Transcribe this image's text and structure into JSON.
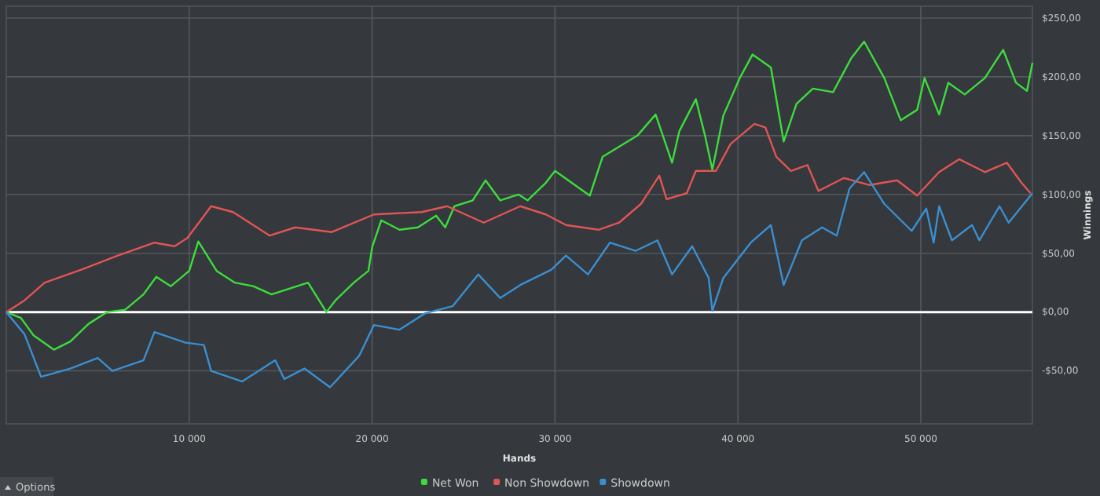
{
  "chart_data": {
    "type": "line",
    "xlabel": "Hands",
    "ylabel": "Winnings",
    "xlim": [
      0,
      56100
    ],
    "xticks": [
      {
        "value": 10000,
        "label": "10 000"
      },
      {
        "value": 20000,
        "label": "20 000"
      },
      {
        "value": 30000,
        "label": "30 000"
      },
      {
        "value": 40000,
        "label": "40 000"
      },
      {
        "value": 50000,
        "label": "50 000"
      }
    ],
    "ylim": [
      -95,
      260
    ],
    "yticks": [
      {
        "value": -50,
        "label": "-$50,00"
      },
      {
        "value": 0,
        "label": "$0,00"
      },
      {
        "value": 50,
        "label": "$50,00"
      },
      {
        "value": 100,
        "label": "$100,00"
      },
      {
        "value": 150,
        "label": "$150,00"
      },
      {
        "value": 200,
        "label": "$200,00"
      },
      {
        "value": 250,
        "label": "$250,00"
      }
    ],
    "grid": true,
    "legend": "bottom",
    "marker": "none",
    "line_style": "solid",
    "ref_lines": [
      {
        "axis": "y",
        "value": 0,
        "color": "#ffffff"
      }
    ],
    "annotations": [
      "Options"
    ],
    "series": [
      {
        "name": "Net Won",
        "color": "#3ddc3d",
        "x": [
          0,
          800,
          1500,
          2600,
          3500,
          4500,
          5500,
          6500,
          7500,
          8200,
          9000,
          10000,
          10500,
          11500,
          12500,
          13500,
          14500,
          15500,
          16500,
          17500,
          18000,
          19000,
          19800,
          20000,
          20500,
          21500,
          22500,
          23500,
          24000,
          24500,
          25500,
          26200,
          27000,
          28000,
          28500,
          29500,
          30000,
          31900,
          32600,
          34500,
          35500,
          36400,
          36800,
          37700,
          38200,
          38600,
          39200,
          40100,
          40800,
          41800,
          42500,
          43200,
          44100,
          45200,
          46200,
          46900,
          48000,
          48900,
          49800,
          50200,
          51000,
          51500,
          52400,
          53500,
          54500,
          55200,
          55800,
          56100
        ],
        "values": [
          0,
          -5,
          -20,
          -32,
          -25,
          -10,
          0,
          2,
          15,
          30,
          22,
          35,
          60,
          35,
          25,
          22,
          15,
          20,
          25,
          0,
          10,
          25,
          35,
          55,
          78,
          70,
          72,
          82,
          72,
          90,
          95,
          112,
          95,
          100,
          95,
          110,
          120,
          99,
          132,
          150,
          168,
          127,
          154,
          181,
          150,
          121,
          167,
          199,
          219,
          208,
          145,
          177,
          190,
          187,
          216,
          230,
          199,
          163,
          172,
          199,
          168,
          195,
          185,
          199,
          223,
          195,
          188,
          212
        ]
      },
      {
        "name": "Non Showdown",
        "color": "#e05555",
        "x": [
          0,
          1000,
          2100,
          4100,
          6100,
          8100,
          9200,
          9900,
          11200,
          12400,
          14400,
          15800,
          17800,
          20100,
          22700,
          24100,
          26100,
          28100,
          29500,
          30600,
          32400,
          33500,
          34700,
          35700,
          36100,
          37200,
          37700,
          38800,
          39600,
          40900,
          41500,
          42100,
          42900,
          43800,
          44400,
          45800,
          47200,
          48700,
          49800,
          51000,
          52100,
          53500,
          54700,
          55500,
          56000
        ],
        "values": [
          0,
          10,
          25,
          36,
          48,
          59,
          56,
          63,
          90,
          85,
          65,
          72,
          68,
          83,
          85,
          90,
          76,
          90,
          83,
          74,
          70,
          76,
          92,
          116,
          96,
          101,
          120,
          120,
          143,
          160,
          157,
          132,
          120,
          125,
          103,
          114,
          108,
          112,
          99,
          119,
          130,
          119,
          127,
          110,
          101
        ]
      },
      {
        "name": "Showdown",
        "color": "#3a8fd0",
        "x": [
          0,
          1000,
          1900,
          3500,
          5000,
          5800,
          7500,
          8100,
          9800,
          10800,
          11200,
          12900,
          14700,
          15200,
          16300,
          17700,
          19300,
          20100,
          21500,
          22900,
          24400,
          25800,
          27000,
          28100,
          29800,
          30600,
          31800,
          33000,
          34400,
          35600,
          36400,
          37500,
          38400,
          38600,
          39200,
          40700,
          41800,
          42500,
          43500,
          44600,
          45400,
          46100,
          46900,
          48000,
          49500,
          50300,
          50700,
          51000,
          51700,
          52800,
          53200,
          54300,
          54800,
          56100
        ],
        "values": [
          0,
          -19,
          -55,
          -48,
          -39,
          -50,
          -41,
          -17,
          -26,
          -28,
          -50,
          -59,
          -41,
          -57,
          -48,
          -64,
          -37,
          -11,
          -15,
          -1,
          5,
          32,
          12,
          23,
          36,
          48,
          32,
          59,
          52,
          61,
          32,
          56,
          29,
          1,
          29,
          59,
          74,
          23,
          61,
          72,
          65,
          105,
          119,
          92,
          69,
          88,
          59,
          90,
          61,
          74,
          61,
          90,
          76,
          101
        ]
      }
    ]
  }
}
